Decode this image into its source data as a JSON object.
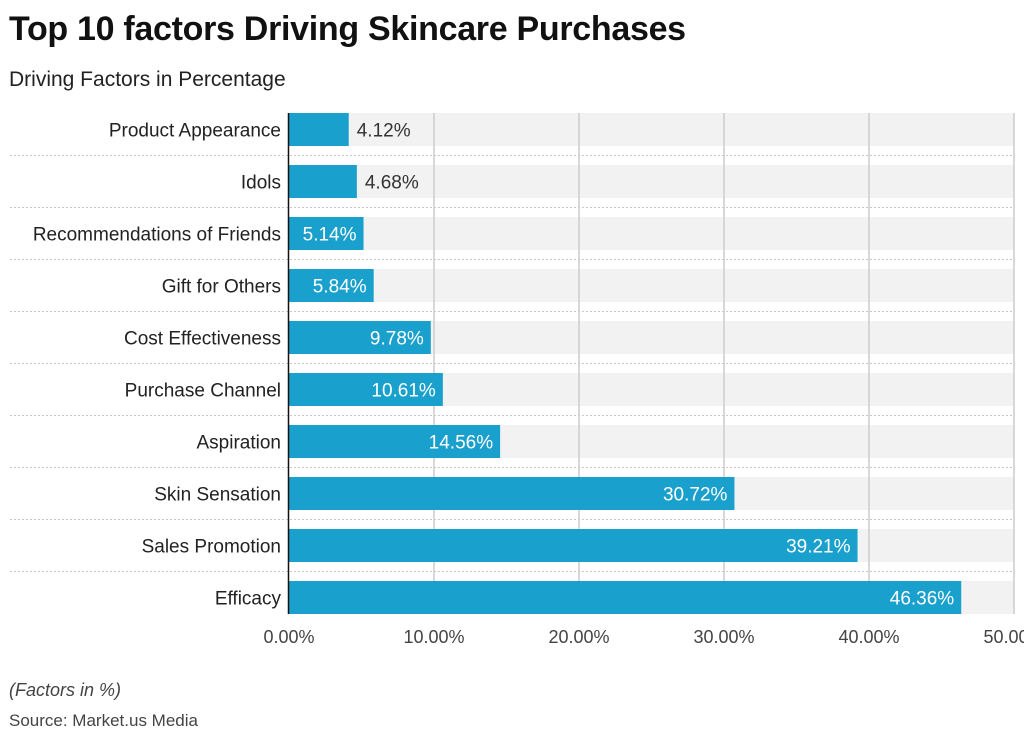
{
  "title": "Top 10 factors Driving Skincare Purchases",
  "subtitle": "Driving Factors in Percentage",
  "note": "(Factors in %)",
  "source": "Source: Market.us Media",
  "colors": {
    "bar": "#1aa0cc",
    "band": "#f2f2f2",
    "grid": "#cccccc"
  },
  "chart_data": {
    "type": "bar",
    "orientation": "horizontal",
    "categories": [
      "Product Appearance",
      "Idols",
      "Recommendations of Friends",
      "Gift for Others",
      "Cost Effectiveness",
      "Purchase Channel",
      "Aspiration",
      "Skin Sensation",
      "Sales Promotion",
      "Efficacy"
    ],
    "values": [
      4.12,
      4.68,
      5.14,
      5.84,
      9.78,
      10.61,
      14.56,
      30.72,
      39.21,
      46.36
    ],
    "data_labels": [
      "4.12%",
      "4.68%",
      "5.14%",
      "5.84%",
      "9.78%",
      "10.61%",
      "14.56%",
      "30.72%",
      "39.21%",
      "46.36%"
    ],
    "xlim": [
      0,
      50
    ],
    "x_ticks": [
      0,
      10,
      20,
      30,
      40,
      50
    ],
    "x_tick_labels": [
      "0.00%",
      "10.00%",
      "20.00%",
      "30.00%",
      "40.00%",
      "50.00%"
    ],
    "grid": "vertical",
    "legend": "none"
  }
}
